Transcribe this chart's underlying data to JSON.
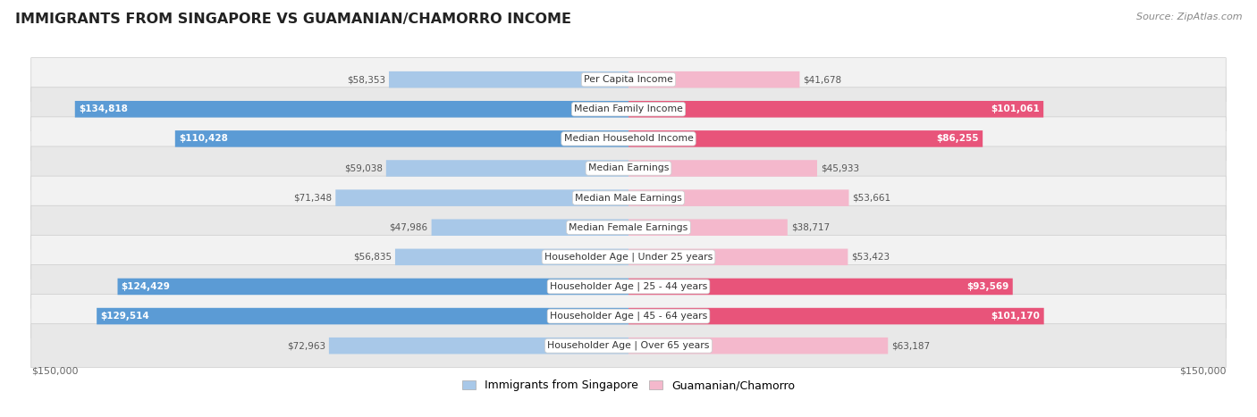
{
  "title": "IMMIGRANTS FROM SINGAPORE VS GUAMANIAN/CHAMORRO INCOME",
  "source": "Source: ZipAtlas.com",
  "categories": [
    "Per Capita Income",
    "Median Family Income",
    "Median Household Income",
    "Median Earnings",
    "Median Male Earnings",
    "Median Female Earnings",
    "Householder Age | Under 25 years",
    "Householder Age | 25 - 44 years",
    "Householder Age | 45 - 64 years",
    "Householder Age | Over 65 years"
  ],
  "singapore_values": [
    58353,
    134818,
    110428,
    59038,
    71348,
    47986,
    56835,
    124429,
    129514,
    72963
  ],
  "guamanian_values": [
    41678,
    101061,
    86255,
    45933,
    53661,
    38717,
    53423,
    93569,
    101170,
    63187
  ],
  "singapore_labels": [
    "$58,353",
    "$134,818",
    "$110,428",
    "$59,038",
    "$71,348",
    "$47,986",
    "$56,835",
    "$124,429",
    "$129,514",
    "$72,963"
  ],
  "guamanian_labels": [
    "$41,678",
    "$101,061",
    "$86,255",
    "$45,933",
    "$53,661",
    "$38,717",
    "$53,423",
    "$93,569",
    "$101,170",
    "$63,187"
  ],
  "singapore_color_light": "#a8c8e8",
  "singapore_color_dark": "#5b9bd5",
  "guamanian_color_light": "#f4b8cc",
  "guamanian_color_dark": "#e8547a",
  "singapore_threshold": 100000,
  "guamanian_threshold": 85000,
  "max_value": 150000,
  "bg_color": "#ffffff",
  "row_bg_light": "#f0f0f0",
  "row_bg_dark": "#e0e0e0",
  "legend_singapore": "Immigrants from Singapore",
  "legend_guamanian": "Guamanian/Chamorro"
}
